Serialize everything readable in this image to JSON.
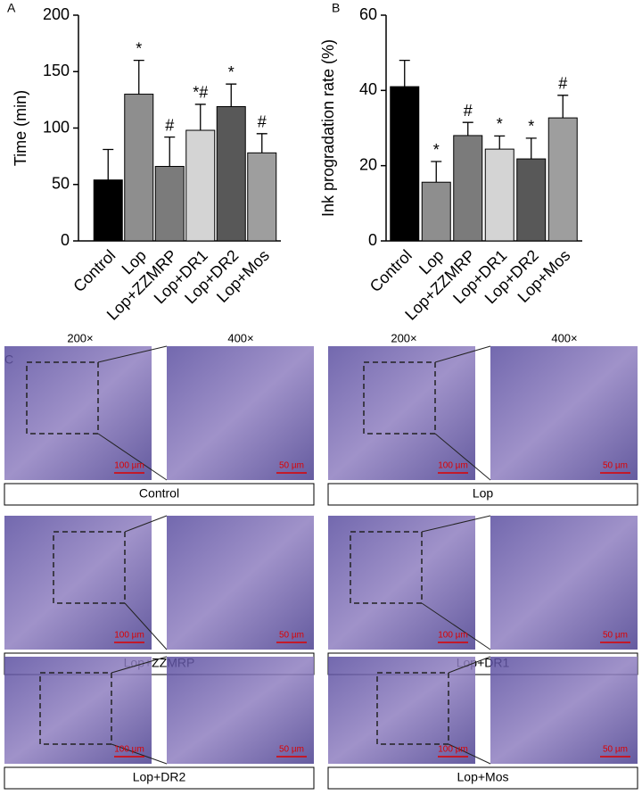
{
  "chart_data": [
    {
      "type": "bar",
      "panel": "A",
      "y_label": "Time (min)",
      "categories": [
        "Control",
        "Lop",
        "Lop+ZZMRP",
        "Lop+DR1",
        "Lop+DR2",
        "Lop+Mos"
      ],
      "values": [
        54,
        130,
        66,
        98,
        119,
        78
      ],
      "errors": [
        27,
        30,
        26,
        23,
        20,
        17
      ],
      "annotations": [
        "",
        "*",
        "#",
        "*#",
        "*",
        "#"
      ],
      "colors": [
        "#000000",
        "#8e8e8e",
        "#7b7b7b",
        "#d4d4d4",
        "#585858",
        "#9e9e9e"
      ],
      "ylim": [
        0,
        200
      ],
      "yticks": [
        0,
        50,
        100,
        150,
        200
      ]
    },
    {
      "type": "bar",
      "panel": "B",
      "y_label": "Ink progradation rate (%)",
      "categories": [
        "Control",
        "Lop",
        "Lop+ZZMRP",
        "Lop+DR1",
        "Lop+DR2",
        "Lop+Mos"
      ],
      "values": [
        41,
        15.6,
        28,
        24.4,
        21.8,
        32.7
      ],
      "errors": [
        7,
        5.5,
        3.5,
        3.5,
        5.5,
        6
      ],
      "annotations": [
        "",
        "*",
        "#",
        "*",
        "*",
        "#"
      ],
      "colors": [
        "#000000",
        "#8e8e8e",
        "#7b7b7b",
        "#d4d4d4",
        "#585858",
        "#9e9e9e"
      ],
      "ylim": [
        0,
        60
      ],
      "yticks": [
        0,
        20,
        40,
        60
      ]
    }
  ],
  "panel_c": {
    "label": "C",
    "magnifications": [
      "200×",
      "400×"
    ],
    "scale_bars": [
      "100 µm",
      "50 µm"
    ],
    "groups": [
      "Control",
      "Lop",
      "Lop+ZZMRP",
      "Lop+DR1",
      "Lop+DR2",
      "Lop+Mos"
    ]
  }
}
